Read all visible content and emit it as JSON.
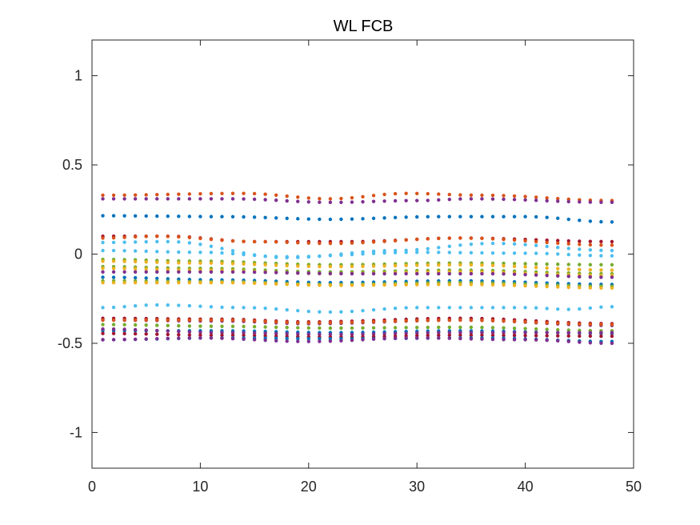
{
  "chart_data": {
    "type": "scatter",
    "title": "WL FCB",
    "xlabel": "",
    "ylabel": "",
    "xlim": [
      0,
      50
    ],
    "ylim": [
      -1.2,
      1.2
    ],
    "xticks": [
      "0",
      "10",
      "20",
      "30",
      "40",
      "50"
    ],
    "yticks": [
      "-1",
      "-0.5",
      "0",
      "0.5",
      "1"
    ],
    "xtick_values": [
      0,
      10,
      20,
      30,
      40,
      50
    ],
    "ytick_values": [
      -1,
      -0.5,
      0,
      0.5,
      1
    ],
    "grid": false,
    "legend": "none",
    "x": [
      1,
      2,
      3,
      4,
      5,
      6,
      7,
      8,
      9,
      10,
      11,
      12,
      13,
      14,
      15,
      16,
      17,
      18,
      19,
      20,
      21,
      22,
      23,
      24,
      25,
      26,
      27,
      28,
      29,
      30,
      31,
      32,
      33,
      34,
      35,
      36,
      37,
      38,
      39,
      40,
      41,
      42,
      43,
      44,
      45,
      46,
      47,
      48
    ],
    "series": [
      {
        "color": "#D95319",
        "key_points": [
          [
            1,
            0.33
          ],
          [
            14,
            0.34
          ],
          [
            22,
            0.31
          ],
          [
            29,
            0.34
          ],
          [
            36,
            0.33
          ],
          [
            48,
            0.3
          ]
        ]
      },
      {
        "color": "#7E2F8E",
        "key_points": [
          [
            1,
            0.31
          ],
          [
            13,
            0.31
          ],
          [
            22,
            0.29
          ],
          [
            30,
            0.3
          ],
          [
            35,
            0.31
          ],
          [
            48,
            0.29
          ]
        ]
      },
      {
        "color": "#0072BD",
        "key_points": [
          [
            1,
            0.215
          ],
          [
            12,
            0.21
          ],
          [
            22,
            0.195
          ],
          [
            32,
            0.21
          ],
          [
            40,
            0.21
          ],
          [
            48,
            0.18
          ]
        ]
      },
      {
        "color": "#A2142F",
        "key_points": [
          [
            1,
            0.1
          ],
          [
            7,
            0.1
          ],
          [
            15,
            0.07
          ],
          [
            24,
            0.07
          ],
          [
            34,
            0.09
          ],
          [
            48,
            0.07
          ]
        ]
      },
      {
        "color": "#D95319",
        "key_points": [
          [
            1,
            0.09
          ],
          [
            6,
            0.1
          ],
          [
            15,
            0.07
          ],
          [
            22,
            0.06
          ],
          [
            34,
            0.09
          ],
          [
            48,
            0.05
          ]
        ]
      },
      {
        "color": "#4DBEEE",
        "key_points": [
          [
            1,
            0.065
          ],
          [
            7,
            0.07
          ],
          [
            18,
            -0.02
          ],
          [
            28,
            0.02
          ],
          [
            37,
            0.06
          ],
          [
            48,
            0.02
          ]
        ]
      },
      {
        "color": "#4DBEEE",
        "key_points": [
          [
            1,
            0.02
          ],
          [
            10,
            0.01
          ],
          [
            18,
            -0.015
          ],
          [
            30,
            0.01
          ],
          [
            40,
            0.005
          ],
          [
            48,
            -0.01
          ]
        ]
      },
      {
        "color": "#77AC30",
        "key_points": [
          [
            1,
            -0.03
          ],
          [
            10,
            -0.04
          ],
          [
            22,
            -0.06
          ],
          [
            34,
            -0.05
          ],
          [
            48,
            -0.06
          ]
        ]
      },
      {
        "color": "#EDB120",
        "key_points": [
          [
            1,
            -0.04
          ],
          [
            10,
            -0.05
          ],
          [
            22,
            -0.07
          ],
          [
            34,
            -0.06
          ],
          [
            48,
            -0.09
          ]
        ]
      },
      {
        "color": "#77AC30",
        "key_points": [
          [
            1,
            -0.07
          ],
          [
            10,
            -0.08
          ],
          [
            22,
            -0.1
          ],
          [
            34,
            -0.09
          ],
          [
            48,
            -0.11
          ]
        ]
      },
      {
        "color": "#EDB120",
        "key_points": [
          [
            1,
            -0.08
          ],
          [
            10,
            -0.09
          ],
          [
            22,
            -0.11
          ],
          [
            34,
            -0.1
          ],
          [
            48,
            -0.12
          ]
        ]
      },
      {
        "color": "#7E2F8E",
        "key_points": [
          [
            1,
            -0.1
          ],
          [
            12,
            -0.1
          ],
          [
            24,
            -0.11
          ],
          [
            36,
            -0.11
          ],
          [
            48,
            -0.13
          ]
        ]
      },
      {
        "color": "#0072BD",
        "key_points": [
          [
            1,
            -0.13
          ],
          [
            12,
            -0.145
          ],
          [
            22,
            -0.16
          ],
          [
            34,
            -0.15
          ],
          [
            48,
            -0.17
          ]
        ]
      },
      {
        "color": "#77AC30",
        "key_points": [
          [
            1,
            -0.15
          ],
          [
            12,
            -0.155
          ],
          [
            22,
            -0.17
          ],
          [
            34,
            -0.16
          ],
          [
            48,
            -0.18
          ]
        ]
      },
      {
        "color": "#EDB120",
        "key_points": [
          [
            1,
            -0.16
          ],
          [
            12,
            -0.16
          ],
          [
            22,
            -0.175
          ],
          [
            34,
            -0.17
          ],
          [
            48,
            -0.19
          ]
        ]
      },
      {
        "color": "#4DBEEE",
        "key_points": [
          [
            1,
            -0.3
          ],
          [
            6,
            -0.285
          ],
          [
            14,
            -0.3
          ],
          [
            22,
            -0.325
          ],
          [
            30,
            -0.3
          ],
          [
            40,
            -0.3
          ],
          [
            44,
            -0.31
          ],
          [
            48,
            -0.295
          ]
        ]
      },
      {
        "color": "#A2142F",
        "key_points": [
          [
            1,
            -0.36
          ],
          [
            12,
            -0.365
          ],
          [
            20,
            -0.38
          ],
          [
            34,
            -0.36
          ],
          [
            48,
            -0.39
          ]
        ]
      },
      {
        "color": "#7E2F8E",
        "key_points": [
          [
            1,
            -0.37
          ],
          [
            12,
            -0.375
          ],
          [
            20,
            -0.39
          ],
          [
            34,
            -0.37
          ],
          [
            48,
            -0.4
          ]
        ]
      },
      {
        "color": "#D95319",
        "key_points": [
          [
            1,
            -0.37
          ],
          [
            12,
            -0.37
          ],
          [
            20,
            -0.385
          ],
          [
            34,
            -0.37
          ],
          [
            48,
            -0.395
          ]
        ]
      },
      {
        "color": "#77AC30",
        "key_points": [
          [
            1,
            -0.395
          ],
          [
            12,
            -0.405
          ],
          [
            22,
            -0.415
          ],
          [
            34,
            -0.41
          ],
          [
            48,
            -0.43
          ]
        ]
      },
      {
        "color": "#0072BD",
        "key_points": [
          [
            1,
            -0.43
          ],
          [
            12,
            -0.43
          ],
          [
            22,
            -0.44
          ],
          [
            34,
            -0.43
          ],
          [
            48,
            -0.445
          ]
        ]
      },
      {
        "color": "#7E2F8E",
        "key_points": [
          [
            1,
            -0.42
          ],
          [
            12,
            -0.44
          ],
          [
            22,
            -0.45
          ],
          [
            34,
            -0.44
          ],
          [
            48,
            -0.44
          ]
        ]
      },
      {
        "color": "#A2142F",
        "key_points": [
          [
            1,
            -0.445
          ],
          [
            12,
            -0.455
          ],
          [
            22,
            -0.465
          ],
          [
            34,
            -0.455
          ],
          [
            48,
            -0.46
          ]
        ]
      },
      {
        "color": "#0072BD",
        "key_points": [
          [
            1,
            -0.48
          ],
          [
            12,
            -0.47
          ],
          [
            22,
            -0.475
          ],
          [
            36,
            -0.47
          ],
          [
            48,
            -0.49
          ]
        ]
      },
      {
        "color": "#7E2F8E",
        "key_points": [
          [
            1,
            -0.48
          ],
          [
            10,
            -0.47
          ],
          [
            20,
            -0.49
          ],
          [
            30,
            -0.47
          ],
          [
            40,
            -0.48
          ],
          [
            48,
            -0.5
          ]
        ]
      }
    ]
  }
}
